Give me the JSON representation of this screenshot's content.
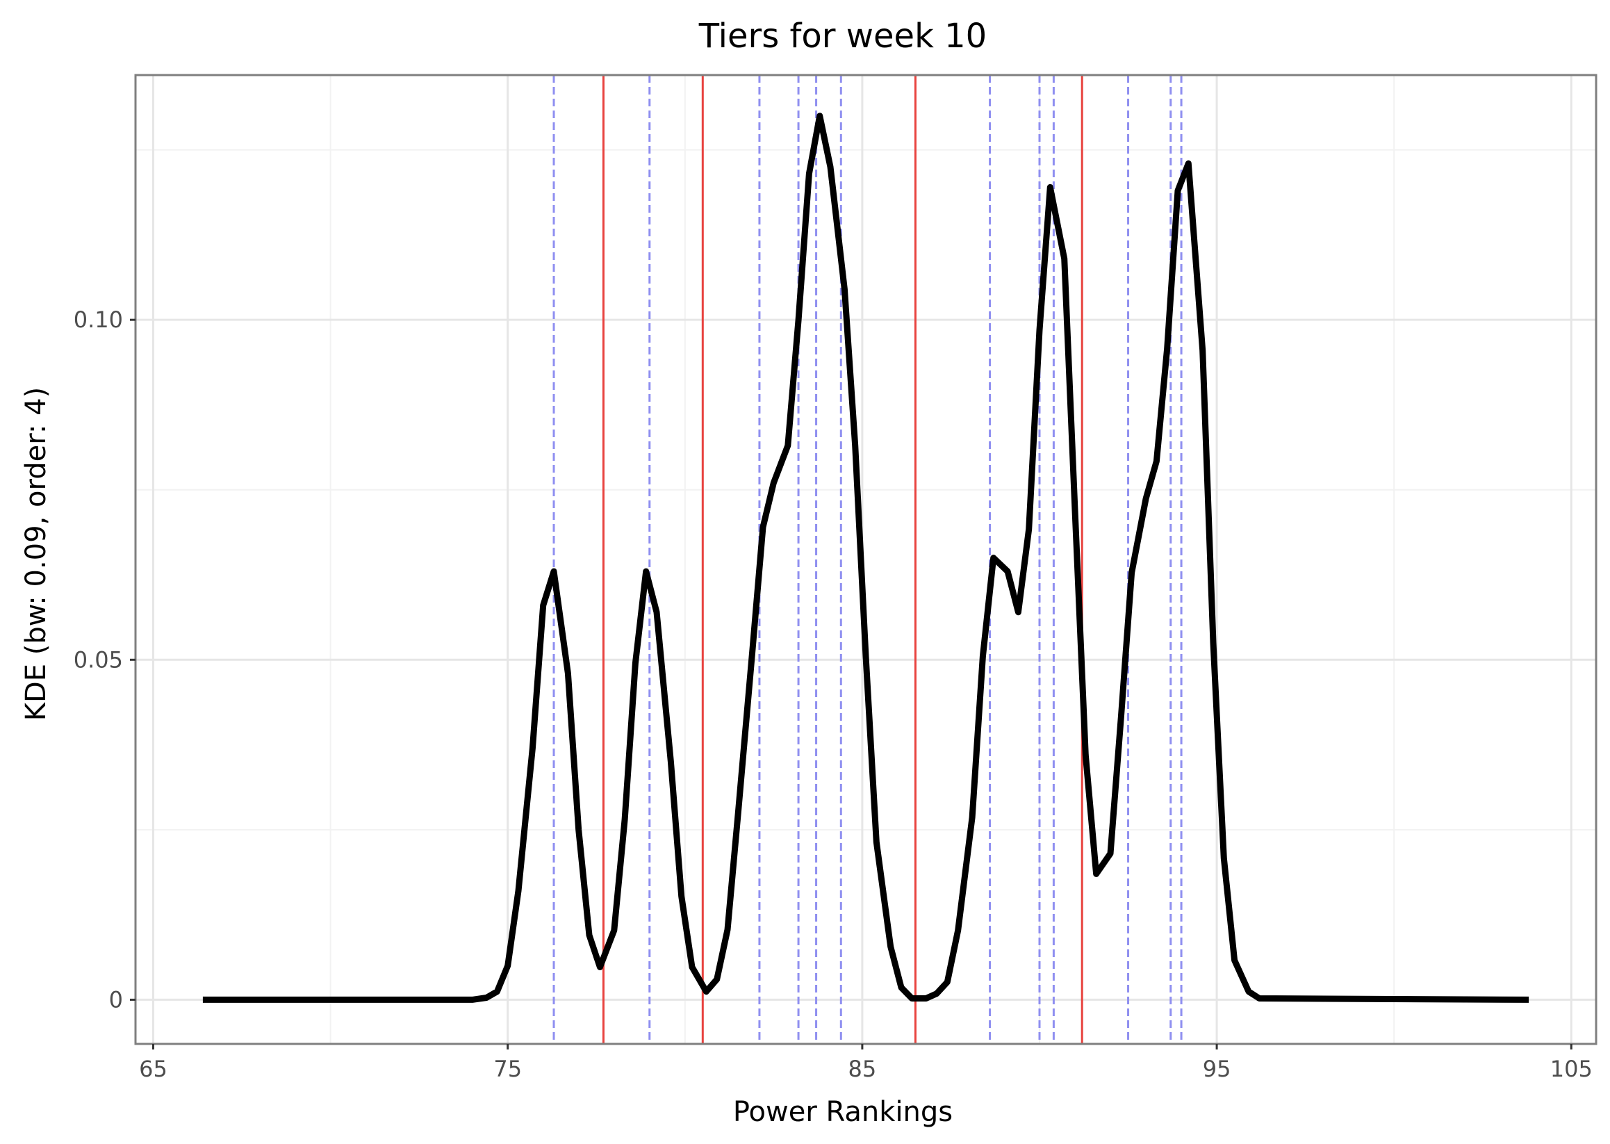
{
  "chart_data": {
    "type": "line",
    "title": "Tiers for week 10",
    "xlabel": "Power Rankings",
    "ylabel": "KDE (bw: 0.09, order: 4)",
    "xlim": [
      64.5,
      105.7
    ],
    "ylim": [
      -0.0065,
      0.136
    ],
    "xticks": [
      65,
      75,
      85,
      95,
      105
    ],
    "xtick_labels": [
      "65",
      "75",
      "85",
      "95",
      "105"
    ],
    "yticks": [
      0,
      0.05,
      0.1
    ],
    "ytick_labels": [
      "0",
      "0.05",
      "0.10"
    ],
    "x_minor_ticks": [
      70,
      80,
      90,
      100
    ],
    "y_minor_ticks": [
      0.025,
      0.075,
      0.125
    ],
    "grid": true,
    "series": [
      {
        "color": "#000000",
        "x": [
          66.4,
          74.0,
          74.4,
          74.7,
          75.0,
          75.3,
          75.7,
          76.0,
          76.3,
          76.7,
          77.0,
          77.3,
          77.6,
          78.0,
          78.3,
          78.6,
          78.9,
          79.2,
          79.6,
          79.9,
          80.2,
          80.6,
          80.9,
          81.2,
          81.5,
          81.9,
          82.2,
          82.5,
          82.9,
          83.2,
          83.5,
          83.8,
          84.1,
          84.5,
          84.8,
          85.1,
          85.4,
          85.8,
          86.1,
          86.4,
          86.8,
          87.1,
          87.4,
          87.7,
          88.1,
          88.4,
          88.7,
          89.1,
          89.4,
          89.7,
          90.0,
          90.3,
          90.7,
          91.0,
          91.3,
          91.6,
          92.0,
          92.3,
          92.6,
          93.0,
          93.3,
          93.6,
          93.9,
          94.2,
          94.6,
          94.9,
          95.2,
          95.5,
          95.9,
          96.2,
          103.8
        ],
        "y": [
          0.0,
          0.0,
          0.0003,
          0.0012,
          0.005,
          0.016,
          0.037,
          0.058,
          0.063,
          0.048,
          0.025,
          0.0095,
          0.0048,
          0.0102,
          0.0265,
          0.0495,
          0.063,
          0.057,
          0.035,
          0.0152,
          0.0048,
          0.0012,
          0.003,
          0.0103,
          0.0275,
          0.0512,
          0.0695,
          0.076,
          0.0815,
          0.1,
          0.1215,
          0.13,
          0.1225,
          0.1045,
          0.0815,
          0.0505,
          0.0232,
          0.0078,
          0.0018,
          0.0002,
          0.0002,
          0.0009,
          0.0026,
          0.0102,
          0.0268,
          0.0505,
          0.065,
          0.063,
          0.057,
          0.0692,
          0.0985,
          0.1195,
          0.109,
          0.072,
          0.036,
          0.0185,
          0.0215,
          0.0415,
          0.0628,
          0.0737,
          0.0792,
          0.0958,
          0.119,
          0.123,
          0.0955,
          0.0525,
          0.0208,
          0.0058,
          0.0012,
          0.0002,
          0.0
        ]
      }
    ],
    "vlines": [
      {
        "style": "dashed",
        "color": "#8f8ff0",
        "x": [
          76.3,
          79.0,
          82.1,
          83.2,
          83.7,
          84.4,
          88.6,
          90.0,
          90.4,
          92.5,
          93.7,
          94.0
        ]
      },
      {
        "style": "solid",
        "color": "#e8433f",
        "x": [
          77.7,
          80.5,
          86.5,
          91.2
        ]
      }
    ]
  }
}
